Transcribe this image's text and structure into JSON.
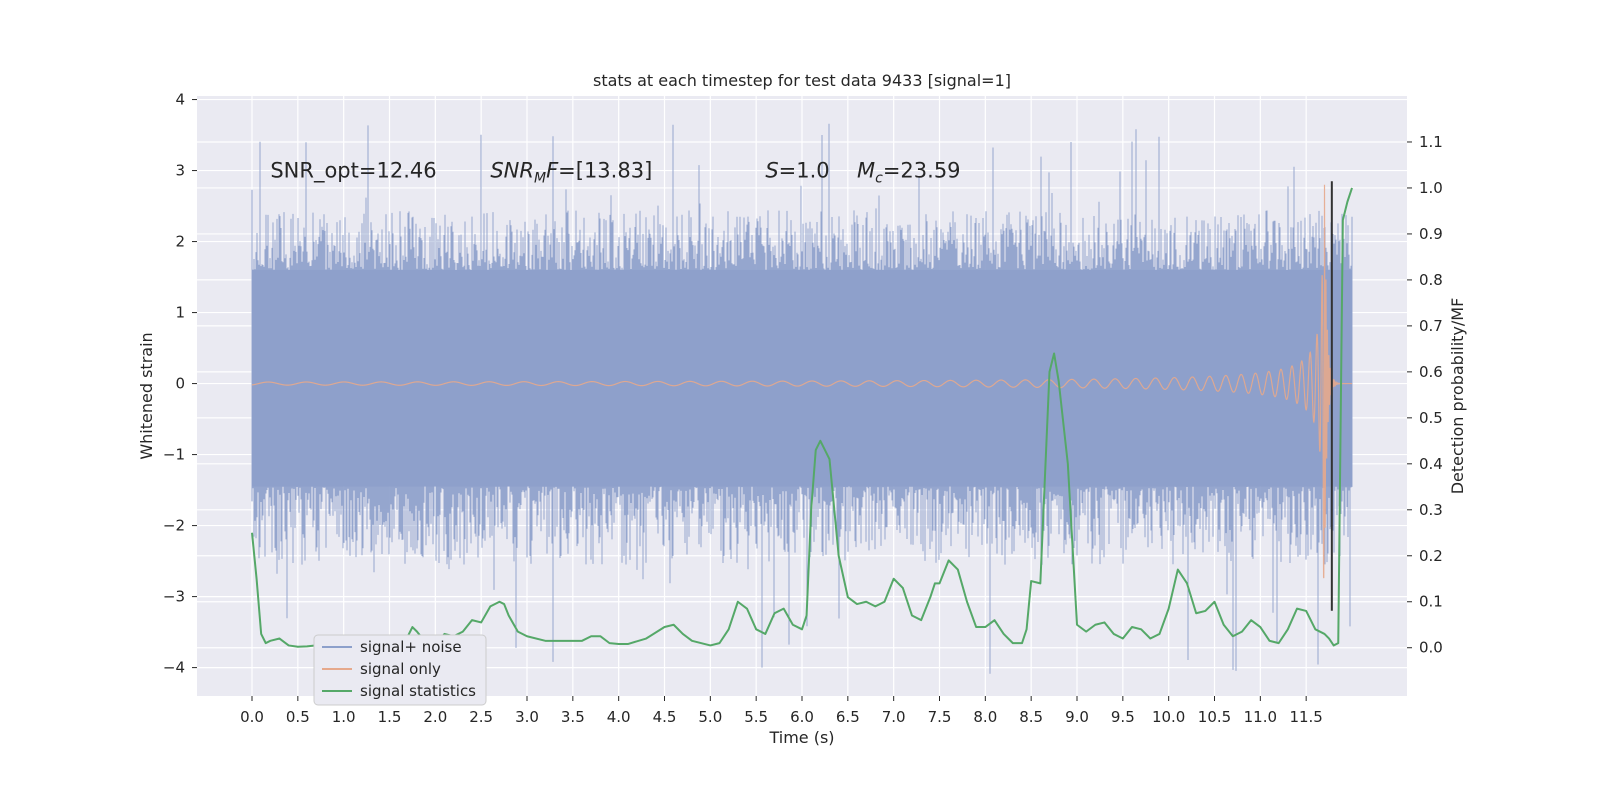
{
  "chart_data": {
    "type": "line",
    "title": "stats at each timestep for test data 9433 [signal=1]",
    "xlabel": "Time (s)",
    "ylabel": "Whitened strain",
    "y2label": "Detection probability/MF",
    "xlim": [
      -0.6,
      12.6
    ],
    "ylim": [
      -4.4,
      4.05
    ],
    "y2lim": [
      -0.105,
      1.2
    ],
    "x_ticks": [
      "0.0",
      "0.5",
      "1.0",
      "1.5",
      "2.0",
      "2.5",
      "3.0",
      "3.5",
      "4.0",
      "4.5",
      "5.0",
      "5.5",
      "6.0",
      "6.5",
      "7.0",
      "7.5",
      "8.0",
      "8.5",
      "9.0",
      "9.5",
      "10.0",
      "10.5",
      "11.0",
      "11.5"
    ],
    "y_ticks": [
      "4",
      "3",
      "2",
      "1",
      "0",
      "−1",
      "−2",
      "−3",
      "−4"
    ],
    "y2_ticks": [
      "1.1",
      "1.0",
      "0.9",
      "0.8",
      "0.7",
      "0.6",
      "0.5",
      "0.4",
      "0.3",
      "0.2",
      "0.1",
      "0.0"
    ],
    "grid": true,
    "legend_position": "lower-left",
    "colors": {
      "background": "#eaeaf2",
      "grid": "#ffffff",
      "noise": "#8da0cb",
      "signal": "#e6a98c",
      "stats": "#55a868",
      "text": "#262626"
    },
    "annotations": [
      {
        "kind": "plain",
        "text": "SNR_opt=12.46",
        "x": 0.2,
        "y": 2.9
      },
      {
        "kind": "snr_mf",
        "base": "SNR",
        "sub": "M",
        "rest": "F=[13.83]",
        "x": 2.6,
        "y": 2.9
      },
      {
        "kind": "spin",
        "sym": "S",
        "rest": "=1.0",
        "x": 5.6,
        "y": 2.9
      },
      {
        "kind": "mchirp",
        "sym": "M",
        "sub": "c",
        "rest": "=23.59",
        "x": 6.6,
        "y": 2.9
      }
    ],
    "series": [
      {
        "name": "signal+ noise",
        "axis": "left",
        "style": "dense-noise",
        "t_range": [
          0.0,
          12.0
        ],
        "typical_max": 2.4,
        "typical_min": -2.5,
        "peak_max": 3.67,
        "peak_min": -4.1
      },
      {
        "name": "signal only",
        "axis": "left",
        "style": "chirp",
        "t_range": [
          0.0,
          12.0
        ],
        "merger_time": 11.7,
        "peak_amplitude": 2.8
      },
      {
        "name": "signal statistics",
        "axis": "right",
        "style": "line",
        "x": [
          0.0,
          0.05,
          0.1,
          0.15,
          0.2,
          0.3,
          0.4,
          0.5,
          0.6,
          0.7,
          0.8,
          0.9,
          1.0,
          1.1,
          1.2,
          1.3,
          1.4,
          1.5,
          1.6,
          1.7,
          1.75,
          1.8,
          1.9,
          2.0,
          2.1,
          2.2,
          2.3,
          2.4,
          2.5,
          2.6,
          2.7,
          2.75,
          2.8,
          2.9,
          3.0,
          3.2,
          3.4,
          3.6,
          3.7,
          3.8,
          3.9,
          4.0,
          4.1,
          4.3,
          4.5,
          4.6,
          4.7,
          4.8,
          5.0,
          5.1,
          5.2,
          5.3,
          5.4,
          5.5,
          5.6,
          5.7,
          5.8,
          5.9,
          6.0,
          6.05,
          6.1,
          6.15,
          6.2,
          6.3,
          6.4,
          6.5,
          6.6,
          6.7,
          6.8,
          6.9,
          7.0,
          7.1,
          7.2,
          7.3,
          7.4,
          7.45,
          7.5,
          7.6,
          7.7,
          7.8,
          7.9,
          8.0,
          8.1,
          8.2,
          8.3,
          8.4,
          8.45,
          8.5,
          8.6,
          8.7,
          8.75,
          8.8,
          8.9,
          9.0,
          9.1,
          9.2,
          9.3,
          9.4,
          9.5,
          9.6,
          9.7,
          9.8,
          9.9,
          10.0,
          10.1,
          10.2,
          10.3,
          10.4,
          10.5,
          10.6,
          10.7,
          10.8,
          10.9,
          11.0,
          11.1,
          11.2,
          11.3,
          11.4,
          11.5,
          11.6,
          11.7,
          11.75,
          11.8,
          11.85,
          11.9,
          11.95,
          12.0
        ],
        "values": [
          0.25,
          0.15,
          0.03,
          0.01,
          0.015,
          0.02,
          0.005,
          0.002,
          0.003,
          0.005,
          0.003,
          0.005,
          0.01,
          0.008,
          0.005,
          0.01,
          0.008,
          0.015,
          0.013,
          0.025,
          0.045,
          0.035,
          0.01,
          0.008,
          0.03,
          0.025,
          0.035,
          0.06,
          0.055,
          0.09,
          0.1,
          0.095,
          0.07,
          0.035,
          0.025,
          0.015,
          0.015,
          0.015,
          0.025,
          0.025,
          0.01,
          0.008,
          0.008,
          0.02,
          0.045,
          0.05,
          0.03,
          0.015,
          0.005,
          0.01,
          0.04,
          0.1,
          0.085,
          0.04,
          0.03,
          0.075,
          0.085,
          0.05,
          0.04,
          0.07,
          0.3,
          0.43,
          0.45,
          0.41,
          0.2,
          0.11,
          0.095,
          0.1,
          0.09,
          0.1,
          0.15,
          0.13,
          0.07,
          0.06,
          0.11,
          0.14,
          0.14,
          0.19,
          0.17,
          0.1,
          0.045,
          0.045,
          0.06,
          0.03,
          0.01,
          0.01,
          0.04,
          0.145,
          0.14,
          0.6,
          0.64,
          0.58,
          0.4,
          0.05,
          0.035,
          0.05,
          0.055,
          0.03,
          0.02,
          0.045,
          0.04,
          0.02,
          0.03,
          0.085,
          0.17,
          0.14,
          0.075,
          0.08,
          0.1,
          0.05,
          0.025,
          0.035,
          0.06,
          0.045,
          0.015,
          0.01,
          0.04,
          0.085,
          0.08,
          0.04,
          0.03,
          0.02,
          0.005,
          0.01,
          0.93,
          0.97,
          1.0
        ]
      }
    ]
  }
}
